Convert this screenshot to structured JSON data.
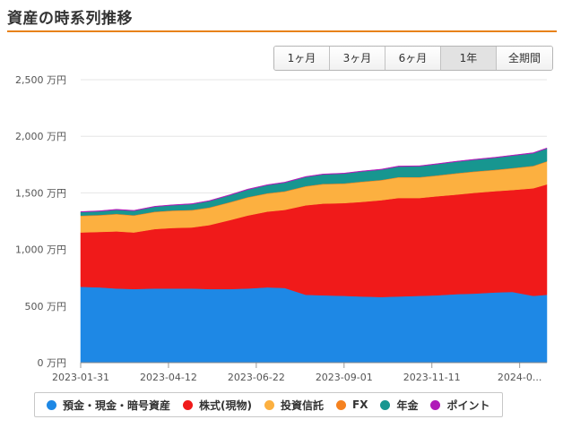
{
  "page": {
    "title": "資産の時系列推移"
  },
  "range_buttons": [
    {
      "label": "1ヶ月",
      "active": false
    },
    {
      "label": "3ヶ月",
      "active": false
    },
    {
      "label": "6ヶ月",
      "active": false
    },
    {
      "label": "1年",
      "active": true
    },
    {
      "label": "全期間",
      "active": false
    }
  ],
  "chart_data": {
    "type": "area",
    "stacked": true,
    "title": "",
    "xlabel": "",
    "ylabel": "",
    "ylim": [
      0,
      2500
    ],
    "yticks": [
      0,
      500,
      1000,
      1500,
      2000,
      2500
    ],
    "ytick_labels": [
      "0 万円",
      "500 万円",
      "1,000 万円",
      "1,500 万円",
      "2,000 万円",
      "2,500 万円"
    ],
    "xlim": [
      "2023-01-31",
      "2024-02-12"
    ],
    "xticks": [
      "2023-01-31",
      "2023-04-12",
      "2023-06-22",
      "2023-09-01",
      "2023-11-11",
      "2024-01-21"
    ],
    "xtick_labels": [
      "2023-01-31",
      "2023-04-12",
      "2023-06-22",
      "2023-09-01",
      "2023-11-11",
      "2024-0..."
    ],
    "grid": true,
    "legend_position": "bottom",
    "x": [
      "2023-01-31",
      "2023-02-15",
      "2023-03-01",
      "2023-03-15",
      "2023-04-01",
      "2023-04-15",
      "2023-05-01",
      "2023-05-15",
      "2023-06-01",
      "2023-06-15",
      "2023-07-01",
      "2023-07-15",
      "2023-08-01",
      "2023-08-15",
      "2023-09-01",
      "2023-09-15",
      "2023-10-01",
      "2023-10-15",
      "2023-11-01",
      "2023-11-15",
      "2023-12-01",
      "2023-12-15",
      "2024-01-01",
      "2024-01-15",
      "2024-02-01",
      "2024-02-12"
    ],
    "series": [
      {
        "name": "預金・現金・暗号資産",
        "color": "#1e88e5",
        "values": [
          670,
          665,
          655,
          650,
          655,
          655,
          655,
          650,
          650,
          655,
          665,
          660,
          600,
          595,
          590,
          585,
          580,
          585,
          590,
          595,
          605,
          610,
          620,
          625,
          590,
          600
        ]
      },
      {
        "name": "株式(現物)",
        "color": "#f01a1a",
        "values": [
          480,
          490,
          505,
          500,
          525,
          535,
          540,
          565,
          610,
          645,
          670,
          690,
          790,
          810,
          820,
          835,
          855,
          870,
          865,
          875,
          880,
          890,
          895,
          900,
          950,
          975
        ]
      },
      {
        "name": "投資信託",
        "color": "#fcb040",
        "values": [
          145,
          145,
          150,
          148,
          150,
          150,
          150,
          152,
          155,
          158,
          158,
          160,
          165,
          170,
          170,
          175,
          175,
          180,
          180,
          180,
          185,
          185,
          185,
          190,
          195,
          200
        ]
      },
      {
        "name": "FX",
        "color": "#f58220",
        "values": [
          5,
          5,
          5,
          5,
          5,
          5,
          5,
          5,
          5,
          5,
          5,
          5,
          5,
          5,
          5,
          5,
          5,
          5,
          5,
          5,
          5,
          5,
          5,
          5,
          5,
          5
        ]
      },
      {
        "name": "年金",
        "color": "#179690",
        "values": [
          30,
          32,
          35,
          38,
          42,
          45,
          50,
          55,
          60,
          65,
          70,
          75,
          80,
          82,
          85,
          88,
          90,
          92,
          95,
          98,
          100,
          102,
          105,
          108,
          110,
          112
        ]
      },
      {
        "name": "ポイント",
        "color": "#b01ab8",
        "values": [
          5,
          5,
          5,
          5,
          5,
          5,
          5,
          5,
          5,
          5,
          5,
          5,
          5,
          5,
          5,
          5,
          5,
          5,
          5,
          5,
          5,
          5,
          5,
          5,
          5,
          5
        ]
      }
    ]
  }
}
